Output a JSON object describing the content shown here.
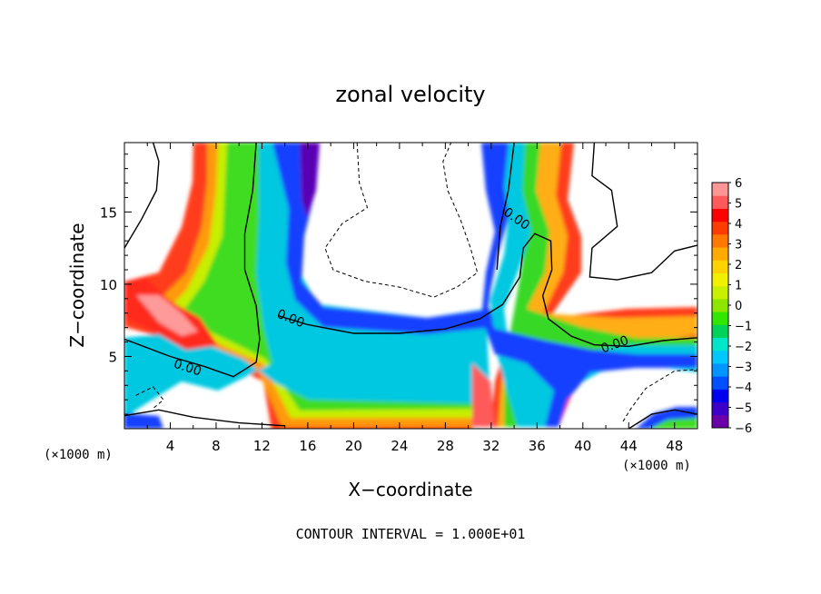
{
  "chart_data": {
    "type": "heatmap",
    "title": "zonal velocity",
    "xlabel": "X−coordinate",
    "ylabel": "Z−coordinate",
    "x_unit_left": "(×1000 m)",
    "x_unit_right": "(×1000 m)",
    "footer": "CONTOUR INTERVAL = 1.000E+01",
    "xlim": [
      0,
      50
    ],
    "ylim": [
      0,
      19.8
    ],
    "x_ticks": [
      4,
      8,
      12,
      16,
      20,
      24,
      28,
      32,
      36,
      40,
      44,
      48
    ],
    "x_tick_labels": [
      "4",
      "8",
      "12",
      "16",
      "20",
      "24",
      "28",
      "32",
      "36",
      "40",
      "44",
      "48"
    ],
    "y_ticks": [
      5,
      10,
      15
    ],
    "y_tick_labels": [
      "5",
      "10",
      "15"
    ],
    "colorbar": {
      "min": -6,
      "max": 6,
      "tick_labels": [
        "6",
        "5",
        "4",
        "3",
        "2",
        "1",
        "0",
        "−1",
        "−2",
        "−3",
        "−4",
        "−5",
        "−6"
      ],
      "colors": [
        "#6a00a8",
        "#3c00c8",
        "#0000f0",
        "#0050ff",
        "#0095ff",
        "#00c8ff",
        "#00e6c8",
        "#00d25a",
        "#32e600",
        "#8ce600",
        "#c8f000",
        "#f0f000",
        "#ffd200",
        "#ffaa00",
        "#ff7800",
        "#ff3c00",
        "#ff0000",
        "#ff5a5a",
        "#ff9696"
      ]
    },
    "contour_labels": [
      {
        "text": "0.00",
        "x": 14.5,
        "y": 7.6,
        "rotate": 22
      },
      {
        "text": "0.00",
        "x": 5.5,
        "y": 4.2,
        "rotate": 18
      },
      {
        "text": "0.00",
        "x": 34.2,
        "y": 14.5,
        "rotate": 35
      },
      {
        "text": "0.00",
        "x": 42.8,
        "y": 5.8,
        "rotate": -20
      }
    ],
    "solid_contours": [
      [
        [
          0,
          6.2
        ],
        [
          4,
          5.0
        ],
        [
          7,
          4.3
        ],
        [
          9.5,
          3.6
        ],
        [
          11.5,
          4.6
        ],
        [
          11.8,
          6.2
        ],
        [
          11.5,
          8.5
        ],
        [
          10.5,
          11
        ],
        [
          10.5,
          13.5
        ],
        [
          11.2,
          16.5
        ],
        [
          11.5,
          19.8
        ]
      ],
      [
        [
          13.5,
          7.8
        ],
        [
          16,
          7.2
        ],
        [
          20,
          6.6
        ],
        [
          24,
          6.6
        ],
        [
          28,
          6.9
        ],
        [
          31,
          7.6
        ],
        [
          33,
          8.6
        ],
        [
          34.5,
          10.5
        ],
        [
          34.8,
          12.5
        ],
        [
          35.8,
          13.5
        ],
        [
          37.2,
          13.0
        ],
        [
          37.3,
          11
        ],
        [
          36.5,
          9.2
        ],
        [
          37,
          7.6
        ],
        [
          39,
          6.4
        ],
        [
          41,
          5.8
        ],
        [
          44,
          5.7
        ],
        [
          47,
          6.1
        ],
        [
          50,
          6.3
        ]
      ],
      [
        [
          32.5,
          11
        ],
        [
          32.8,
          14
        ],
        [
          33.5,
          16.5
        ],
        [
          34,
          19.8
        ]
      ],
      [
        [
          0,
          0.9
        ],
        [
          3,
          1.3
        ],
        [
          6,
          0.8
        ],
        [
          10,
          0.4
        ],
        [
          14,
          0.2
        ]
      ],
      [
        [
          44,
          0
        ],
        [
          46,
          1.0
        ],
        [
          48,
          1.3
        ],
        [
          50,
          1.0
        ]
      ],
      [
        [
          0,
          12.5
        ],
        [
          1.5,
          14.5
        ],
        [
          2.8,
          16.5
        ],
        [
          3.0,
          18.5
        ],
        [
          2.5,
          19.8
        ]
      ],
      [
        [
          41,
          19.8
        ],
        [
          40.8,
          17.5
        ],
        [
          42.5,
          16.5
        ],
        [
          43,
          14
        ],
        [
          40.8,
          12.5
        ],
        [
          40.6,
          10.5
        ],
        [
          43,
          10.3
        ],
        [
          46,
          10.8
        ],
        [
          48,
          12.3
        ],
        [
          50,
          12.7
        ]
      ]
    ],
    "dashed_contours": [
      [
        [
          20.3,
          19.8
        ],
        [
          20.5,
          17
        ],
        [
          21.2,
          15.3
        ],
        [
          19,
          14.2
        ],
        [
          17.5,
          12.5
        ],
        [
          18.2,
          11
        ],
        [
          21,
          10.2
        ],
        [
          24,
          9.8
        ],
        [
          27,
          9.1
        ],
        [
          29,
          9.8
        ],
        [
          30.8,
          10.8
        ],
        [
          30.2,
          12.5
        ],
        [
          29.3,
          14.5
        ],
        [
          28.2,
          16.5
        ],
        [
          27.8,
          18.5
        ],
        [
          28.5,
          19.8
        ]
      ],
      [
        [
          43.5,
          0.5
        ],
        [
          44.2,
          1.4
        ],
        [
          45.5,
          2.8
        ],
        [
          48,
          4.0
        ],
        [
          50,
          4.1
        ]
      ],
      [
        [
          1,
          2.3
        ],
        [
          2.5,
          2.9
        ],
        [
          3.4,
          2.0
        ],
        [
          2.5,
          1.4
        ]
      ]
    ]
  }
}
